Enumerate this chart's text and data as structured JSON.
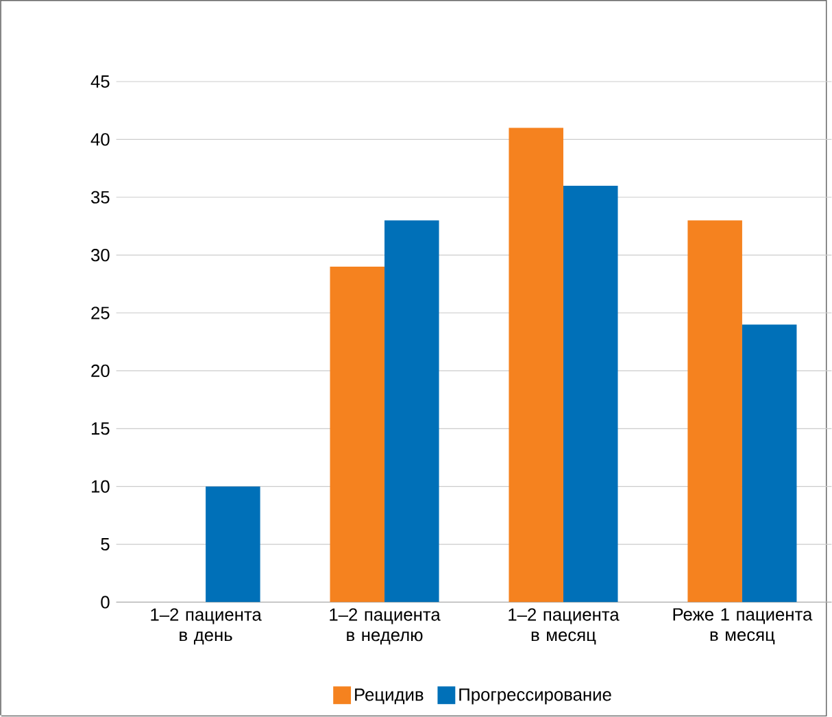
{
  "chart_data": {
    "type": "bar",
    "categories": [
      "1–2 пациента в день",
      "1–2 пациента в неделю",
      "1–2 пациента в месяц",
      "Реже 1 пациента в месяц"
    ],
    "series": [
      {
        "name": "Рецидив",
        "color": "#f5821f",
        "values": [
          0,
          29,
          41,
          33
        ]
      },
      {
        "name": "Прогрессирование",
        "color": "#0070b8",
        "values": [
          10,
          33,
          36,
          24
        ]
      }
    ],
    "ylim": [
      0,
      45
    ],
    "yticks": [
      0,
      5,
      10,
      15,
      20,
      25,
      30,
      35,
      40,
      45
    ],
    "grid": "y",
    "legend": "bottom"
  }
}
